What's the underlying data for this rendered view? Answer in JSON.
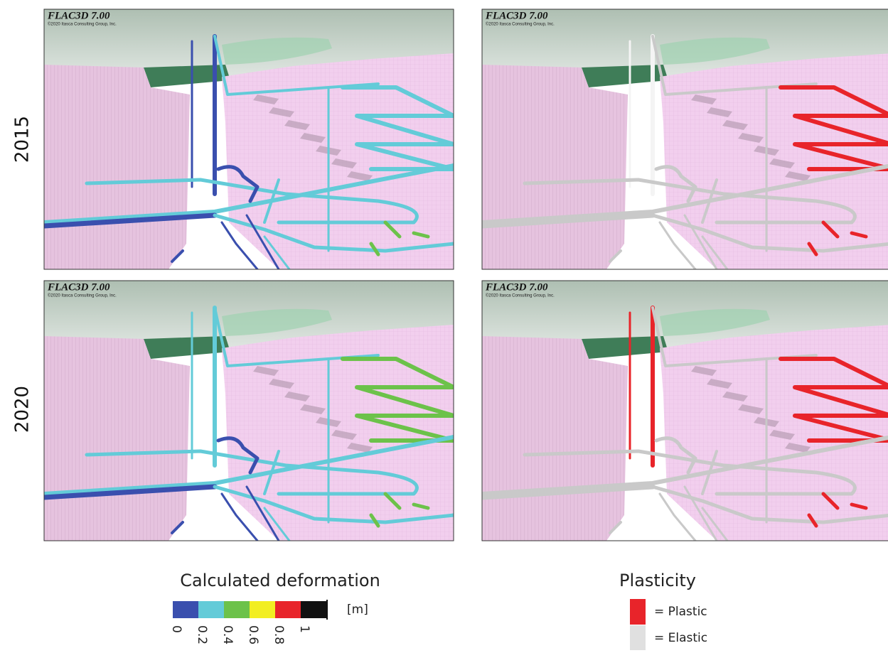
{
  "panels": [
    {
      "row": 0,
      "col": 0,
      "software": "FLAC3D 7.00",
      "copyright": "©2020 Itasca Consulting Group, Inc."
    },
    {
      "row": 0,
      "col": 1,
      "software": "FLAC3D 7.00",
      "copyright": "©2020 Itasca Consulting Group, Inc."
    },
    {
      "row": 1,
      "col": 0,
      "software": "FLAC3D 7.00",
      "copyright": "©2020 Itasca Consulting Group, Inc."
    },
    {
      "row": 1,
      "col": 1,
      "software": "FLAC3D 7.00",
      "copyright": "©2020 Itasca Consulting Group, Inc."
    }
  ],
  "row_labels": [
    "2015",
    "2020"
  ],
  "deformation_legend": {
    "title": "Calculated deformation",
    "unit": "[m]",
    "colors": [
      "#3a4fae",
      "#63cbd8",
      "#6cc24a",
      "#f2ee22",
      "#e8242a",
      "#111111"
    ],
    "ticks": [
      "0",
      "0.2",
      "0.4",
      "0.6",
      "0.8",
      "1"
    ]
  },
  "plasticity_legend": {
    "title": "Plasticity",
    "items": [
      {
        "label": "= Plastic",
        "color": "#e8242a"
      },
      {
        "label": "= Elastic",
        "color": "#e0e0e0"
      }
    ]
  }
}
